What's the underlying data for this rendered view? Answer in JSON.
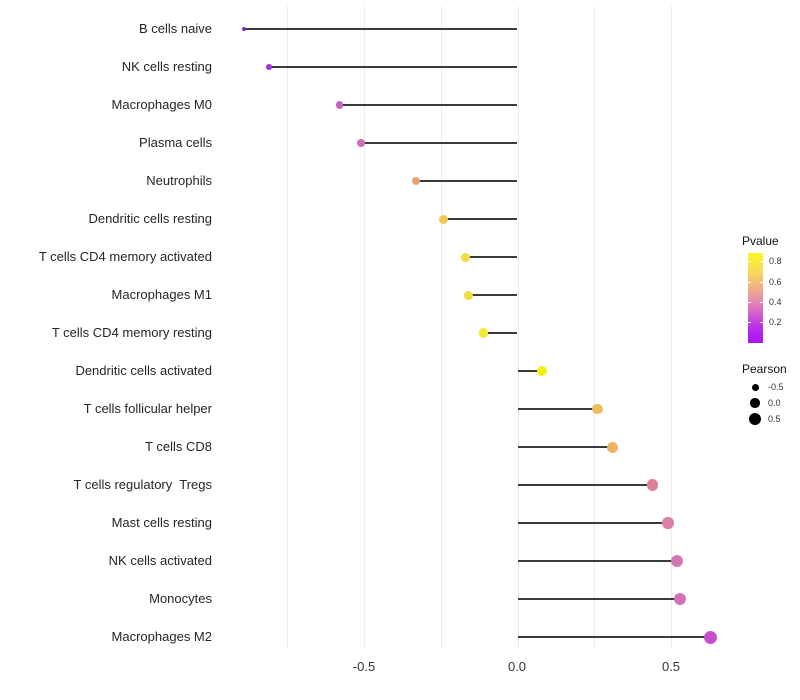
{
  "chart_data": {
    "type": "lollipop",
    "title": "",
    "xlabel": "",
    "ylabel": "",
    "xlim": [
      -0.96,
      0.69
    ],
    "grid": true,
    "gridline_values": [
      -0.75,
      -0.5,
      -0.25,
      0,
      0.25,
      0.5
    ],
    "x_ticks": [
      "-0.5",
      "0.0",
      "0.5"
    ],
    "x_tick_values": [
      -0.5,
      0.0,
      0.5
    ],
    "stem_anchor": 0,
    "points": [
      {
        "label": "B cells naive",
        "pearson": -0.89,
        "color": "#8224C9",
        "size": 4
      },
      {
        "label": "NK cells resting",
        "pearson": -0.81,
        "color": "#A435DB",
        "size": 5.5
      },
      {
        "label": "Macrophages M0",
        "pearson": -0.58,
        "color": "#C863C6",
        "size": 7.5
      },
      {
        "label": "Plasma cells",
        "pearson": -0.51,
        "color": "#CF70B5",
        "size": 7.5
      },
      {
        "label": "Neutrophils",
        "pearson": -0.33,
        "color": "#EAA271",
        "size": 8.5
      },
      {
        "label": "Dendritic cells resting",
        "pearson": -0.24,
        "color": "#EFC854",
        "size": 9
      },
      {
        "label": "T cells CD4 memory activated",
        "pearson": -0.17,
        "color": "#F2DC40",
        "size": 9
      },
      {
        "label": "Macrophages M1",
        "pearson": -0.16,
        "color": "#F2DC3F",
        "size": 9
      },
      {
        "label": "T cells CD4 memory resting",
        "pearson": -0.11,
        "color": "#F5EA32",
        "size": 9.5
      },
      {
        "label": "Dendritic cells activated",
        "pearson": 0.08,
        "color": "#F4F017",
        "size": 10.5
      },
      {
        "label": "T cells follicular helper",
        "pearson": 0.26,
        "color": "#EDBC5E",
        "size": 10.5
      },
      {
        "label": "T cells CD8",
        "pearson": 0.31,
        "color": "#EEB166",
        "size": 11
      },
      {
        "label": "T cells regulatory  Tregs",
        "pearson": 0.44,
        "color": "#DC8295",
        "size": 11.5
      },
      {
        "label": "Mast cells resting",
        "pearson": 0.49,
        "color": "#DB7FA7",
        "size": 11.5
      },
      {
        "label": "NK cells activated",
        "pearson": 0.52,
        "color": "#D575B5",
        "size": 12
      },
      {
        "label": "Monocytes",
        "pearson": 0.53,
        "color": "#D472B8",
        "size": 12
      },
      {
        "label": "Macrophages M2",
        "pearson": 0.63,
        "color": "#C750D0",
        "size": 13
      }
    ],
    "legend_pvalue": {
      "title": "Pvalue",
      "tick_labels": [
        "0.8",
        "0.6",
        "0.4",
        "0.2"
      ],
      "gradient_top_to_bottom": [
        "#FCF528",
        "#F8E04F",
        "#F3BD79",
        "#E694A6",
        "#D662CC",
        "#BA2BEA",
        "#A816F4"
      ]
    },
    "legend_pearson": {
      "title": "Pearson",
      "items": [
        {
          "label": "-0.5",
          "size": 7
        },
        {
          "label": "0.0",
          "size": 9.5
        },
        {
          "label": "0.5",
          "size": 12
        }
      ]
    },
    "colors": {
      "background": "#FFFFFF",
      "stem": "#3A3A3A",
      "grid": "#ECECEC",
      "axis_text": "#333333",
      "label_text": "#262626",
      "legend_dot": "#000000"
    }
  }
}
